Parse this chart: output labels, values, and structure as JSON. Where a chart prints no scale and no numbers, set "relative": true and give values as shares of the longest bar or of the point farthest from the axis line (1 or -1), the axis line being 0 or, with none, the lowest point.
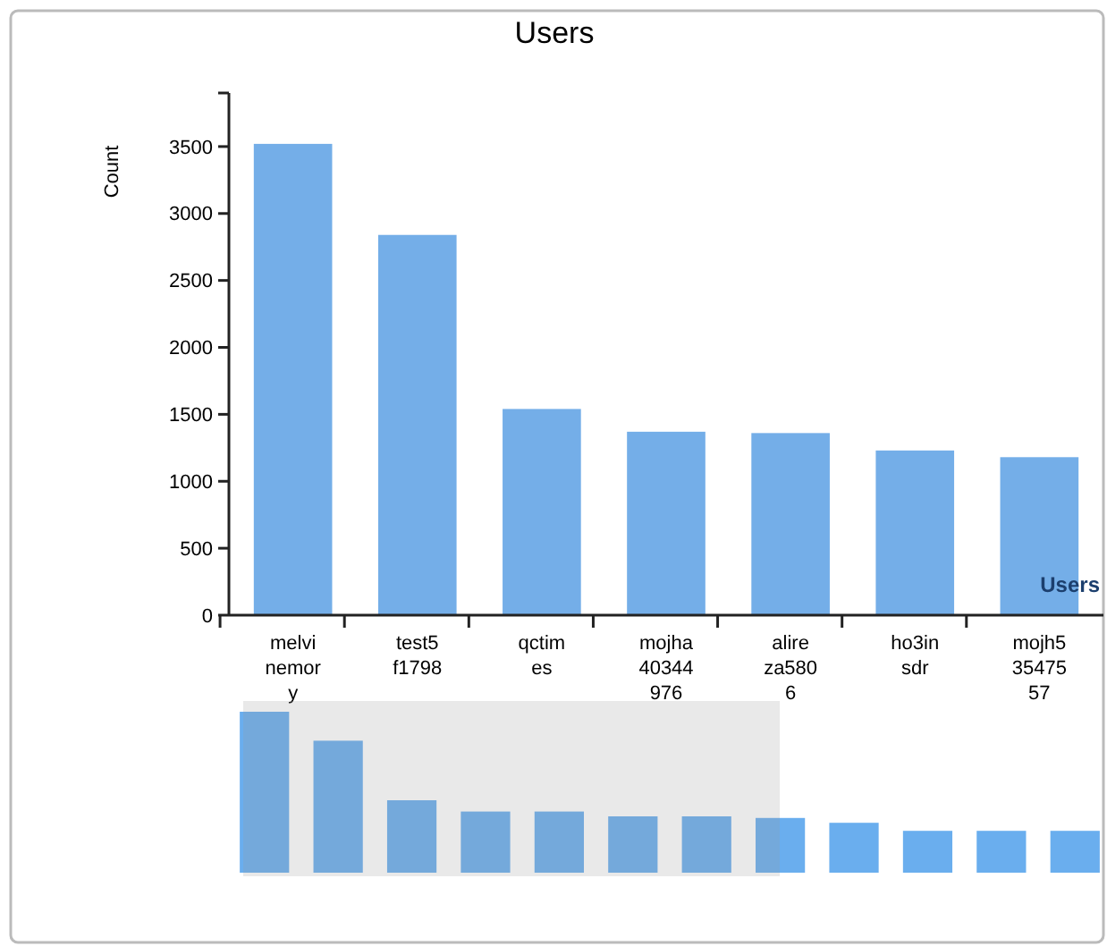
{
  "chart_data": [
    {
      "type": "bar",
      "title": "Users",
      "ylabel": "Count",
      "xlabel": "Users",
      "categories": [
        "melvinemory",
        "test5f1798",
        "qctimes",
        "mojha40344976",
        "alireza5806",
        "ho3insdr",
        "mojh53547557"
      ],
      "values": [
        3520,
        2840,
        1540,
        1370,
        1360,
        1230,
        1180
      ],
      "color": "#74aee8",
      "ylim": [
        0,
        3900
      ],
      "yticks": [
        0,
        500,
        1000,
        1500,
        2000,
        2500,
        3000,
        3500
      ],
      "grid": false
    },
    {
      "type": "bar",
      "relative": true,
      "categories": [
        null,
        null,
        null,
        null,
        null,
        null,
        null,
        null,
        null,
        null,
        null,
        null
      ],
      "values": [
        1,
        0.82,
        0.45,
        0.38,
        0.38,
        0.35,
        0.35,
        0.34,
        0.31,
        0.26,
        0.26,
        0.26
      ],
      "color": "#6aaeee"
    }
  ]
}
